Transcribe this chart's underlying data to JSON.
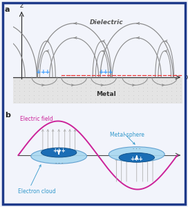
{
  "bg_color": "#f2f4fb",
  "border_color": "#1e3a8a",
  "panel_a": {
    "label": "a",
    "dielectric_label": "Dielectric",
    "metal_label": "Metal",
    "x_label": "x",
    "z_label": "z",
    "metal_bg": "#e4e4e4",
    "dot_color": "#c8c8c8",
    "positive_color": "#3399ff",
    "dashed_color": "#ee3333",
    "arc_color": "#999999"
  },
  "panel_b": {
    "label": "b",
    "electric_field_color": "#cc2299",
    "electron_cloud_color": "#a8d8f0",
    "electron_cloud_edge": "#5599cc",
    "sphere_color": "#1a6db5",
    "sphere_edge": "#0d4a80",
    "arrow_color": "#aaaaaa",
    "label_electric": "Electric field",
    "label_electron": "Electron cloud",
    "label_sphere": "Metal sphere",
    "plus_color": "#ffffff",
    "minus_color": "#555555"
  }
}
